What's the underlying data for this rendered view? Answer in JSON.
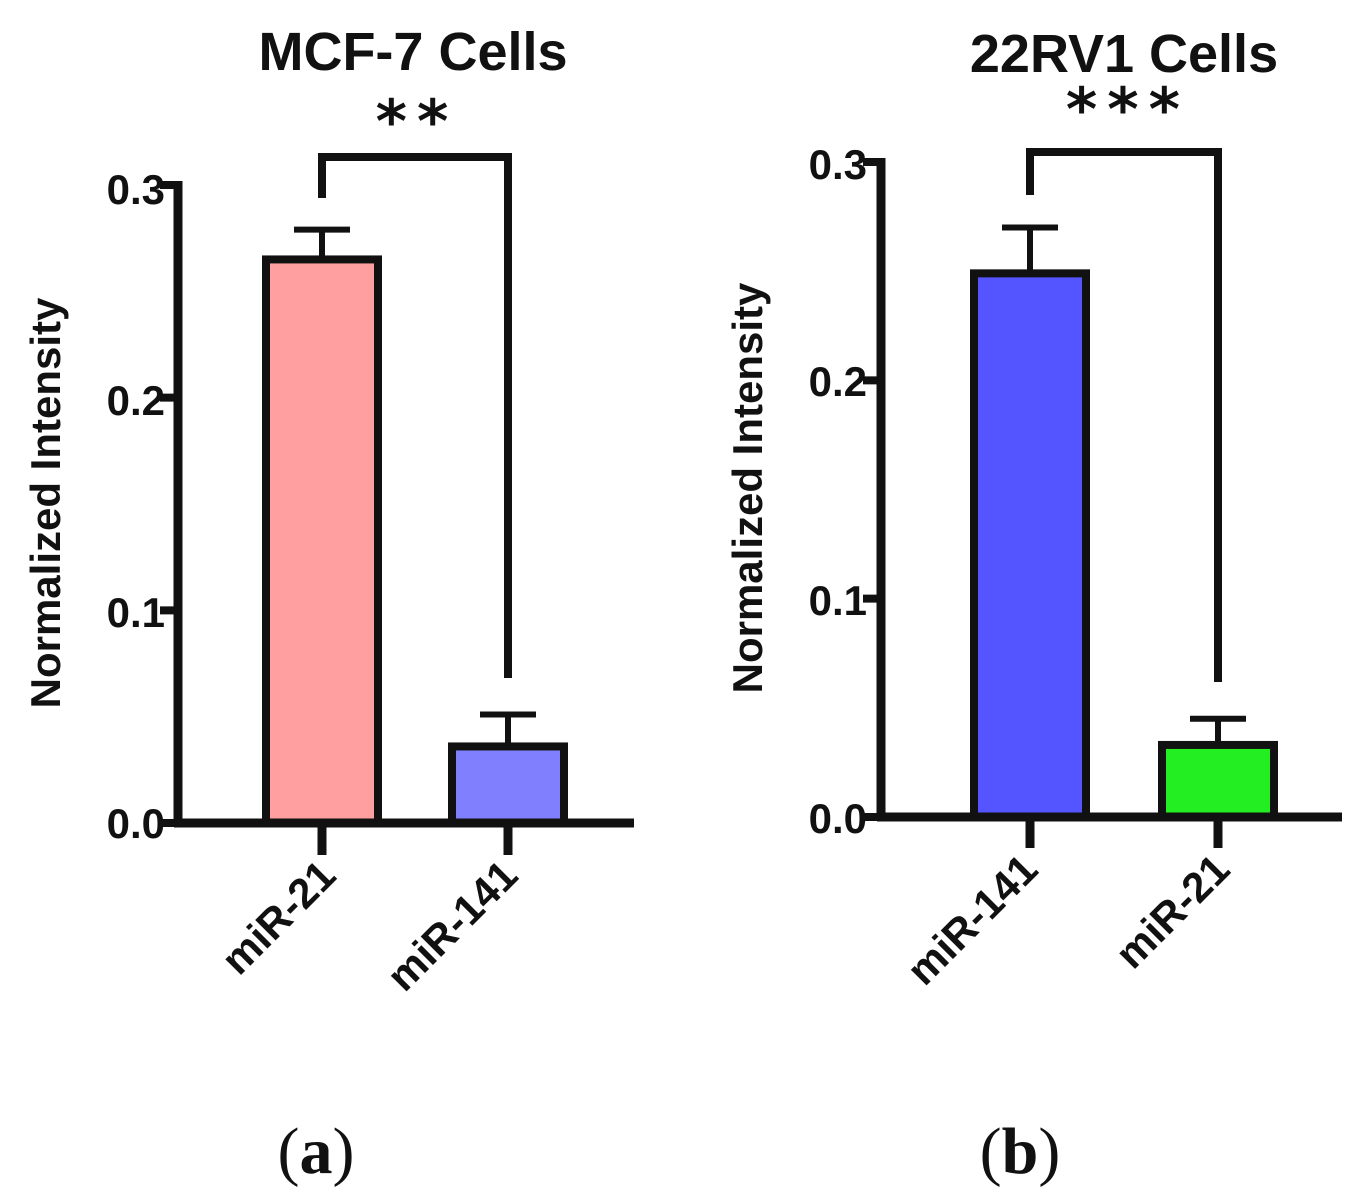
{
  "chart_data": [
    {
      "type": "bar",
      "title": "MCF-7 Cells",
      "panel_label": "a",
      "xlabel": "",
      "ylabel": "Normalized Intensity",
      "ylim": [
        0,
        0.3
      ],
      "yticks": [
        "0.0",
        "0.1",
        "0.2",
        "0.3"
      ],
      "categories": [
        "miR-21",
        "miR-141"
      ],
      "values": [
        0.265,
        0.036
      ],
      "errors": [
        0.014,
        0.015
      ],
      "colors": [
        "#FF9F9F",
        "#8080FF"
      ],
      "significance": "**"
    },
    {
      "type": "bar",
      "title": "22RV1 Cells",
      "panel_label": "b",
      "xlabel": "",
      "ylabel": "Normalized Intensity",
      "ylim": [
        0,
        0.3
      ],
      "yticks": [
        "0.0",
        "0.1",
        "0.2",
        "0.3"
      ],
      "categories": [
        "miR-141",
        "miR-21"
      ],
      "values": [
        0.249,
        0.033
      ],
      "errors": [
        0.021,
        0.012
      ],
      "colors": [
        "#5555FF",
        "#22EE22"
      ],
      "significance": "***"
    }
  ]
}
